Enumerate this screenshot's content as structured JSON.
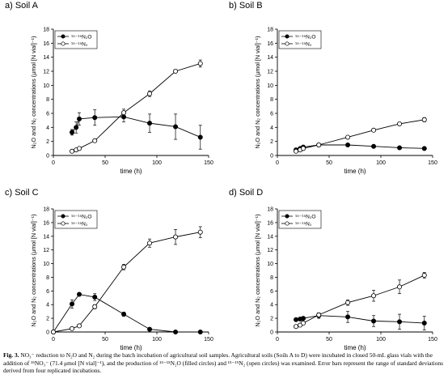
{
  "caption": {
    "label": "Fig. 3.",
    "text": "NO₃⁻ reduction to N₂O and N₂ during the batch incubation of agricultural soil samples. Agricultural soils (Soils A to D) were incubated in closed 50-mL glass vials with the addition of ¹⁵NO₃⁻ (71.4 μmol [N vial]⁻¹), and the production of ¹⁵⁻¹⁵N₂O (filled circles) and ¹⁵⁻¹⁵N₂ (open circles) was examined. Error bars represent the range of standard deviations derived from four replicated incubations."
  },
  "chart_data": [
    {
      "type": "line",
      "title": "a) Soil A",
      "xlabel": "time (h)",
      "ylabel": "N₂O and N₂ concentrations (μmol [N vial]⁻¹)",
      "xlim": [
        0,
        150
      ],
      "ylim": [
        0,
        18
      ],
      "xticks": [
        0,
        50,
        100,
        150
      ],
      "yticks": [
        0,
        2,
        4,
        6,
        8,
        10,
        12,
        14,
        16,
        18
      ],
      "legend_position": "top-left",
      "series": [
        {
          "name": "¹⁵⁻¹⁵N₂O",
          "marker": "filled-circle",
          "x": [
            18,
            22,
            25,
            40,
            68,
            93,
            118,
            142
          ],
          "y": [
            3.3,
            4.0,
            5.2,
            5.4,
            5.5,
            4.6,
            4.1,
            2.6
          ],
          "err": [
            0.4,
            0.8,
            0.9,
            1.1,
            0.7,
            1.3,
            1.8,
            1.7
          ]
        },
        {
          "name": "¹⁵⁻¹⁵N₂",
          "marker": "open-circle",
          "x": [
            18,
            22,
            25,
            40,
            68,
            93,
            118,
            142
          ],
          "y": [
            0.6,
            0.8,
            1.0,
            2.1,
            6.1,
            8.8,
            12.0,
            13.1
          ],
          "err": [
            0.1,
            0.1,
            0.1,
            0.2,
            0.5,
            0.4,
            0.2,
            0.5
          ]
        }
      ]
    },
    {
      "type": "line",
      "title": "b) Soil B",
      "xlabel": "time (h)",
      "ylabel": "N₂O and N₂ concentrations (μmol [N vial]⁻¹)",
      "xlim": [
        0,
        150
      ],
      "ylim": [
        0,
        18
      ],
      "xticks": [
        0,
        50,
        100,
        150
      ],
      "yticks": [
        0,
        2,
        4,
        6,
        8,
        10,
        12,
        14,
        16,
        18
      ],
      "legend_position": "top-left",
      "series": [
        {
          "name": "¹⁵⁻¹⁵N₂O",
          "marker": "filled-circle",
          "x": [
            18,
            22,
            25,
            40,
            68,
            93,
            118,
            142
          ],
          "y": [
            0.8,
            1.0,
            1.2,
            1.5,
            1.5,
            1.3,
            1.1,
            1.0
          ],
          "err": [
            0.1,
            0.1,
            0.1,
            0.2,
            0.2,
            0.1,
            0.1,
            0.1
          ]
        },
        {
          "name": "¹⁵⁻¹⁵N₂",
          "marker": "open-circle",
          "x": [
            18,
            22,
            25,
            40,
            68,
            93,
            118,
            142
          ],
          "y": [
            0.6,
            0.8,
            1.0,
            1.5,
            2.6,
            3.6,
            4.5,
            5.1
          ],
          "err": [
            0.1,
            0.1,
            0.1,
            0.1,
            0.2,
            0.2,
            0.2,
            0.3
          ]
        }
      ]
    },
    {
      "type": "line",
      "title": "c) Soil C",
      "xlabel": "time (h)",
      "ylabel": "N₂O and N₂ concentrations (μmol [N vial]⁻¹)",
      "xlim": [
        0,
        150
      ],
      "ylim": [
        0,
        18
      ],
      "xticks": [
        0,
        50,
        100,
        150
      ],
      "yticks": [
        0,
        2,
        4,
        6,
        8,
        10,
        12,
        14,
        16,
        18
      ],
      "legend_position": "top-left",
      "series": [
        {
          "name": "¹⁵⁻¹⁵N₂O",
          "marker": "filled-circle",
          "x": [
            0,
            18,
            25,
            40,
            68,
            93,
            118,
            142
          ],
          "y": [
            0.0,
            4.1,
            5.5,
            5.1,
            2.6,
            0.4,
            0.0,
            0.0
          ],
          "err": [
            0.0,
            0.6,
            0.2,
            0.5,
            0.3,
            0.1,
            0.0,
            0.0
          ]
        },
        {
          "name": "¹⁵⁻¹⁵N₂",
          "marker": "open-circle",
          "x": [
            0,
            18,
            25,
            40,
            68,
            93,
            118,
            142
          ],
          "y": [
            0.0,
            0.5,
            0.9,
            3.7,
            9.5,
            13.0,
            13.9,
            14.6
          ],
          "err": [
            0.0,
            0.1,
            0.1,
            0.3,
            0.4,
            0.6,
            1.1,
            0.8
          ]
        }
      ]
    },
    {
      "type": "line",
      "title": "d) Soil D",
      "xlabel": "time (h)",
      "ylabel": "N₂O and N₂ concentrations (μmol [N vial]⁻¹)",
      "xlim": [
        0,
        150
      ],
      "ylim": [
        0,
        18
      ],
      "xticks": [
        0,
        50,
        100,
        150
      ],
      "yticks": [
        0,
        2,
        4,
        6,
        8,
        10,
        12,
        14,
        16,
        18
      ],
      "legend_position": "top-left",
      "series": [
        {
          "name": "¹⁵⁻¹⁵N₂O",
          "marker": "filled-circle",
          "x": [
            18,
            22,
            25,
            40,
            68,
            93,
            118,
            142
          ],
          "y": [
            1.8,
            1.9,
            2.0,
            2.4,
            2.2,
            1.6,
            1.5,
            1.3
          ],
          "err": [
            0.2,
            0.2,
            0.2,
            0.4,
            0.8,
            0.8,
            1.1,
            1.0
          ]
        },
        {
          "name": "¹⁵⁻¹⁵N₂",
          "marker": "open-circle",
          "x": [
            18,
            22,
            25,
            40,
            68,
            93,
            118,
            142
          ],
          "y": [
            0.8,
            1.0,
            1.3,
            2.5,
            4.3,
            5.3,
            6.6,
            8.3
          ],
          "err": [
            0.1,
            0.1,
            0.2,
            0.3,
            0.4,
            0.8,
            1.0,
            0.4
          ]
        }
      ]
    }
  ]
}
